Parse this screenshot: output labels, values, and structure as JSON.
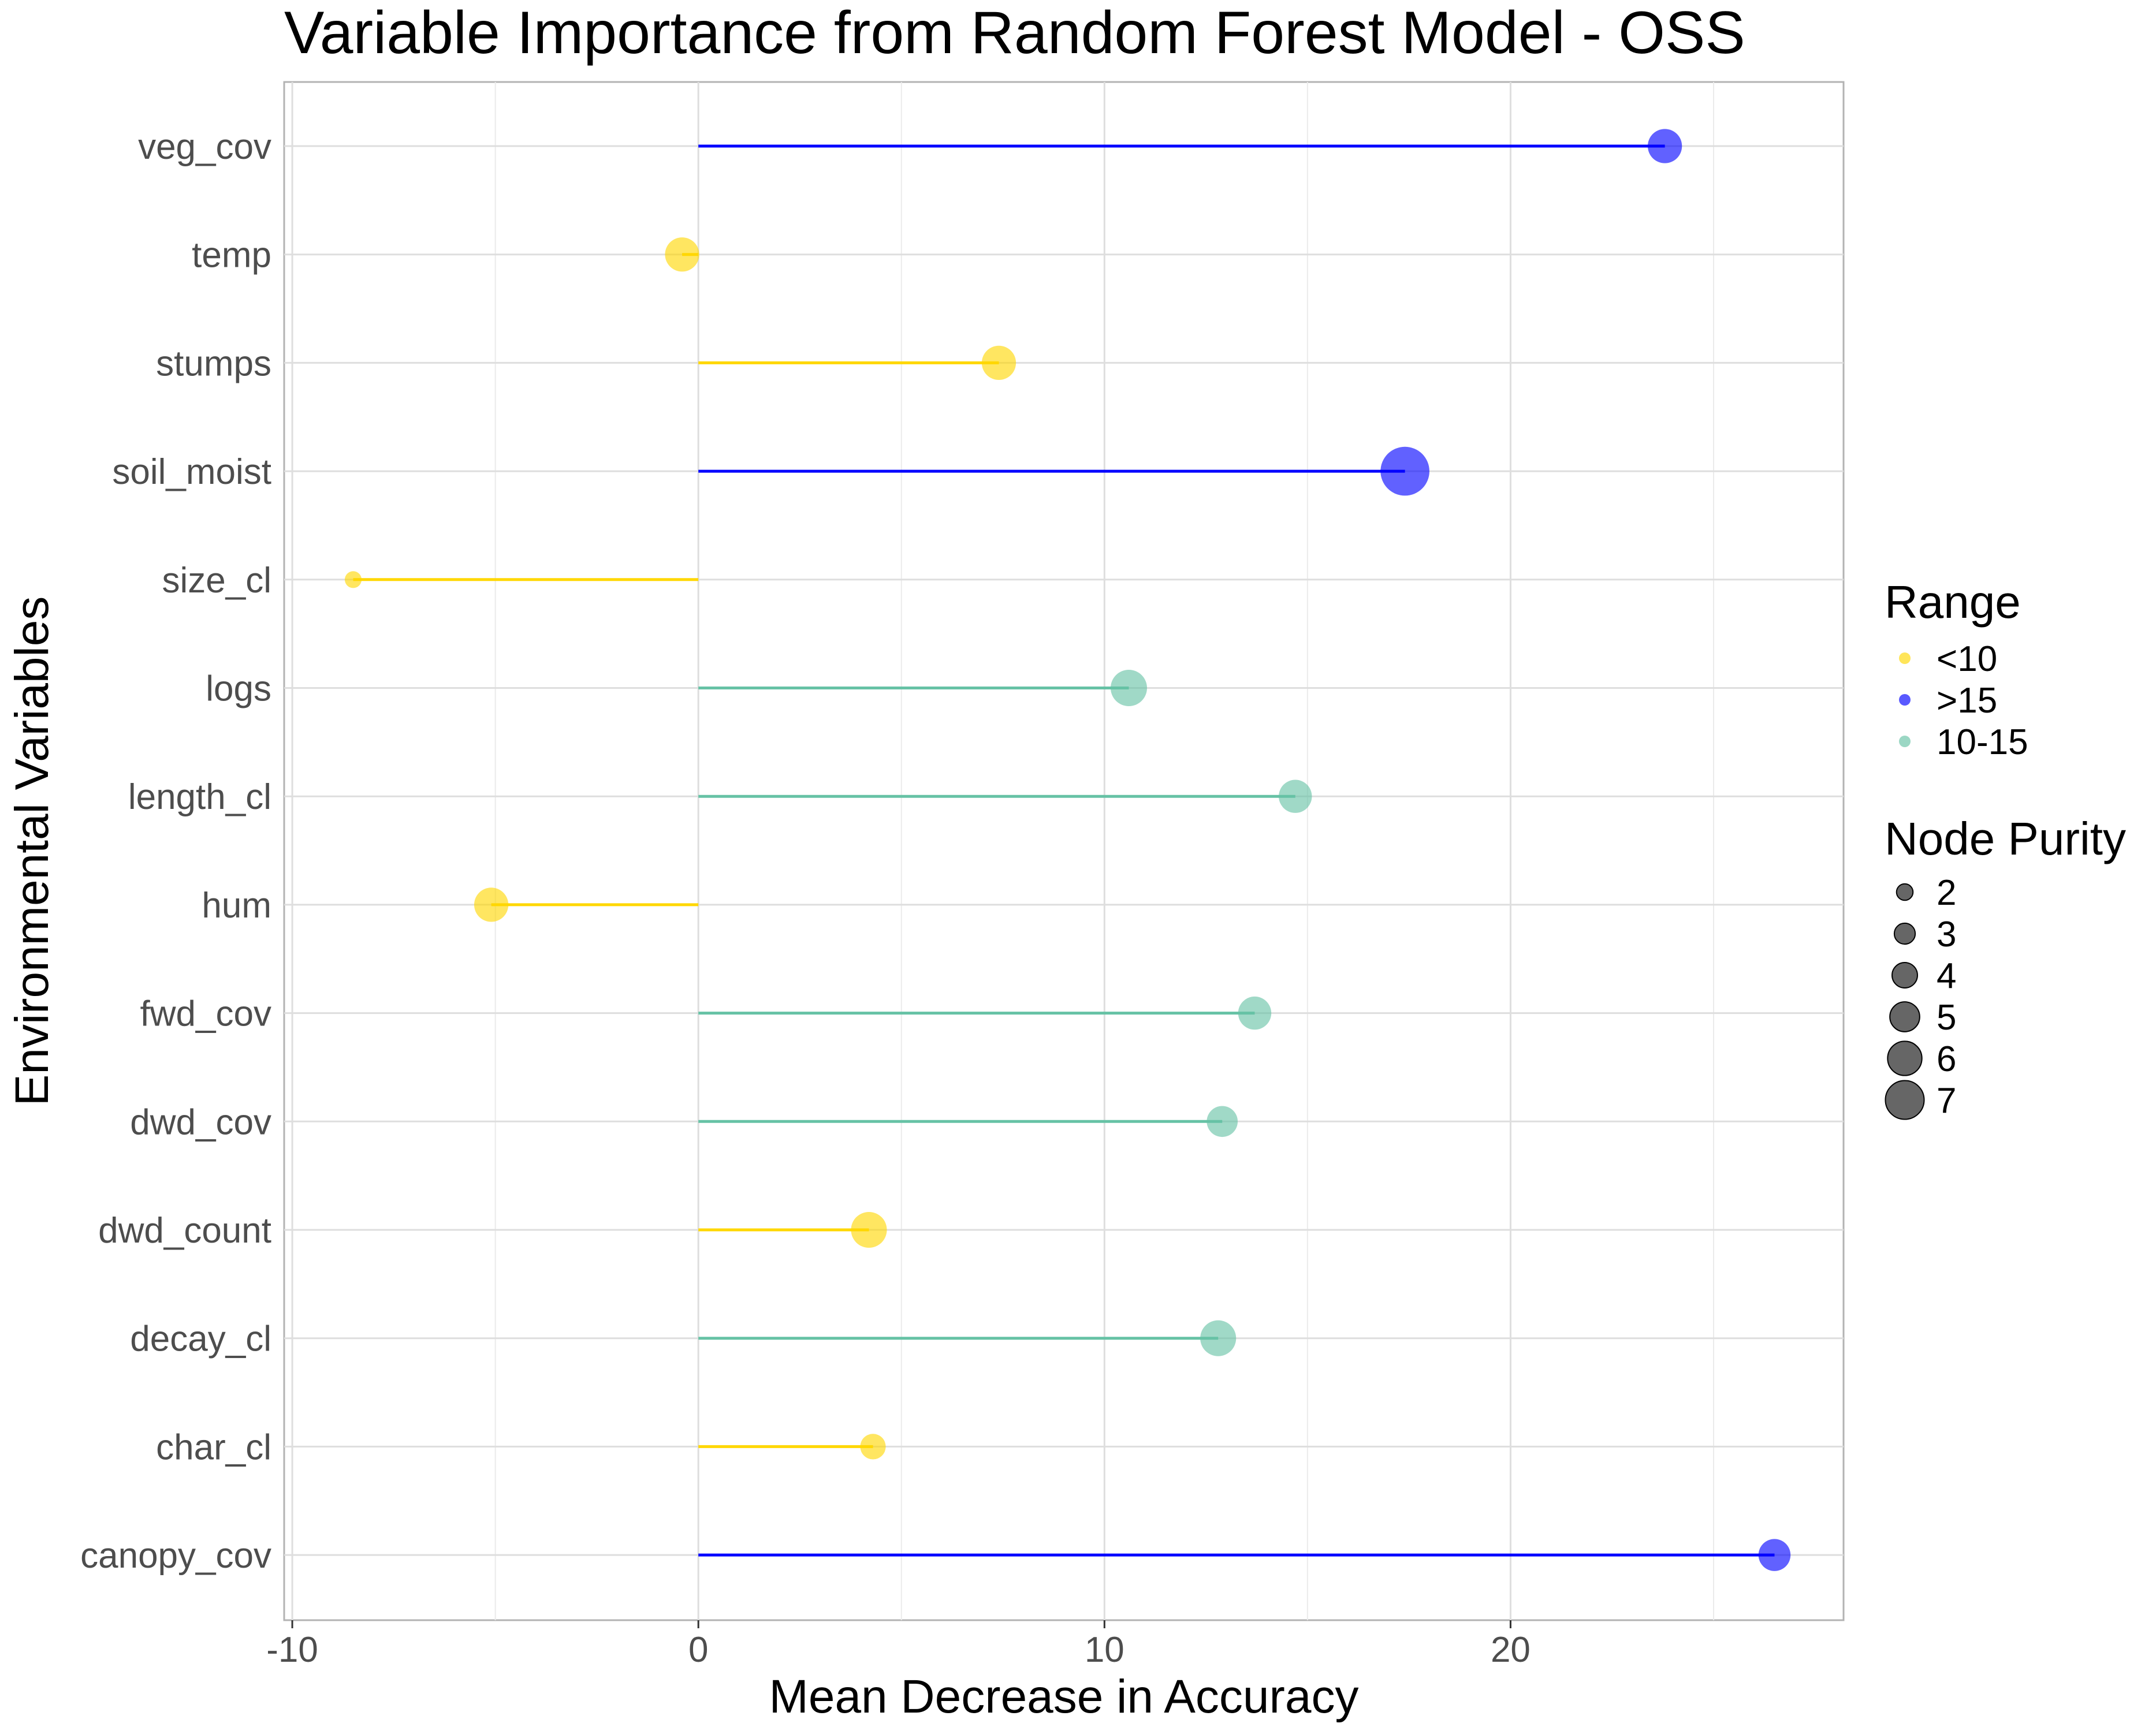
{
  "chart_data": {
    "type": "lollipop",
    "title": "Variable Importance from Random Forest Model - OSS",
    "xlabel": "Mean Decrease in Accuracy",
    "ylabel": "Environmental Variables",
    "xlim": [
      -10.2,
      28.2
    ],
    "x_ticks": [
      -10,
      0,
      10,
      20
    ],
    "grid": true,
    "legend_position": "right",
    "colors": {
      "<10": "#FFD700",
      ">15": "#0000FF",
      "10-15": "#66C2A5"
    },
    "range_legend": {
      "title": "Range",
      "items": [
        "<10",
        ">15",
        "10-15"
      ]
    },
    "size_legend": {
      "title": "Node Purity",
      "values": [
        2,
        3,
        4,
        5,
        6,
        7
      ]
    },
    "points": [
      {
        "variable": "veg_cov",
        "accuracy": 23.8,
        "node_purity": 4.6,
        "range": ">15"
      },
      {
        "variable": "temp",
        "accuracy": -0.4,
        "node_purity": 4.6,
        "range": "<10"
      },
      {
        "variable": "stumps",
        "accuracy": 7.4,
        "node_purity": 4.6,
        "range": "<10"
      },
      {
        "variable": "soil_moist",
        "accuracy": 17.4,
        "node_purity": 7.3,
        "range": ">15"
      },
      {
        "variable": "size_cl",
        "accuracy": -8.5,
        "node_purity": 1.4,
        "range": "<10"
      },
      {
        "variable": "logs",
        "accuracy": 10.6,
        "node_purity": 5.0,
        "range": "10-15"
      },
      {
        "variable": "length_cl",
        "accuracy": 14.7,
        "node_purity": 4.4,
        "range": "10-15"
      },
      {
        "variable": "hum",
        "accuracy": -5.1,
        "node_purity": 4.6,
        "range": "<10"
      },
      {
        "variable": "fwd_cov",
        "accuracy": 13.7,
        "node_purity": 4.4,
        "range": "10-15"
      },
      {
        "variable": "dwd_cov",
        "accuracy": 12.9,
        "node_purity": 4.0,
        "range": "10-15"
      },
      {
        "variable": "dwd_count",
        "accuracy": 4.2,
        "node_purity": 4.9,
        "range": "<10"
      },
      {
        "variable": "decay_cl",
        "accuracy": 12.8,
        "node_purity": 4.9,
        "range": "10-15"
      },
      {
        "variable": "char_cl",
        "accuracy": 4.3,
        "node_purity": 3.0,
        "range": "<10"
      },
      {
        "variable": "canopy_cov",
        "accuracy": 26.5,
        "node_purity": 4.2,
        "range": ">15"
      }
    ]
  }
}
